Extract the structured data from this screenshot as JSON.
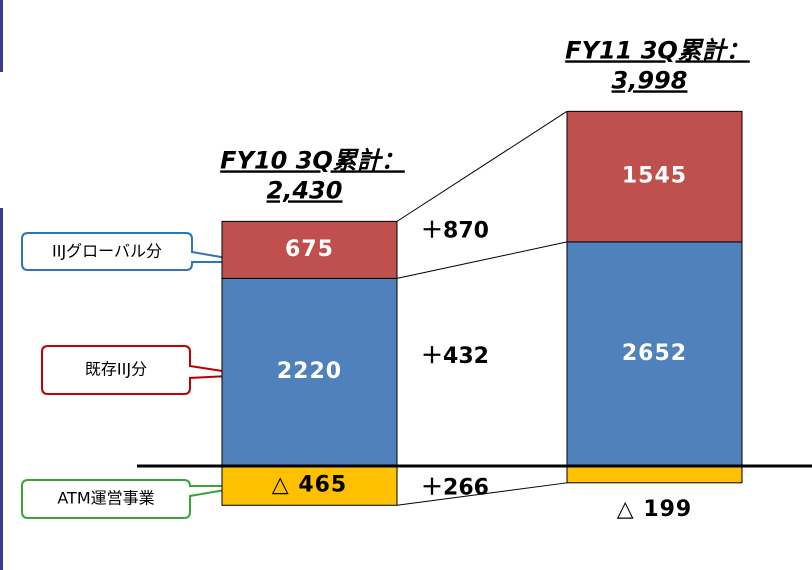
{
  "chart_data": {
    "type": "bar",
    "stacked": true,
    "categories": [
      null,
      null
    ],
    "series": [
      {
        "name": "ATM運営事業",
        "color": "#ffc000",
        "values": [
          -465,
          -199
        ],
        "value_labels": [
          "△ 465",
          "△ 199"
        ]
      },
      {
        "name": "既存IIJ分",
        "color": "#4f81bd",
        "values": [
          2220,
          2652
        ]
      },
      {
        "name": "IIJグローバル分",
        "color": "#c0504d",
        "values": [
          675,
          1545
        ]
      }
    ],
    "total_labels": [
      "FY10 3Q累計：",
      "FY11 3Q累計："
    ],
    "totals": [
      2430,
      3998
    ],
    "total_value_labels": [
      "2,430",
      "3,998"
    ],
    "changes": [
      266,
      432,
      870
    ],
    "change_labels": [
      "＋266",
      "＋432",
      "＋870"
    ]
  }
}
